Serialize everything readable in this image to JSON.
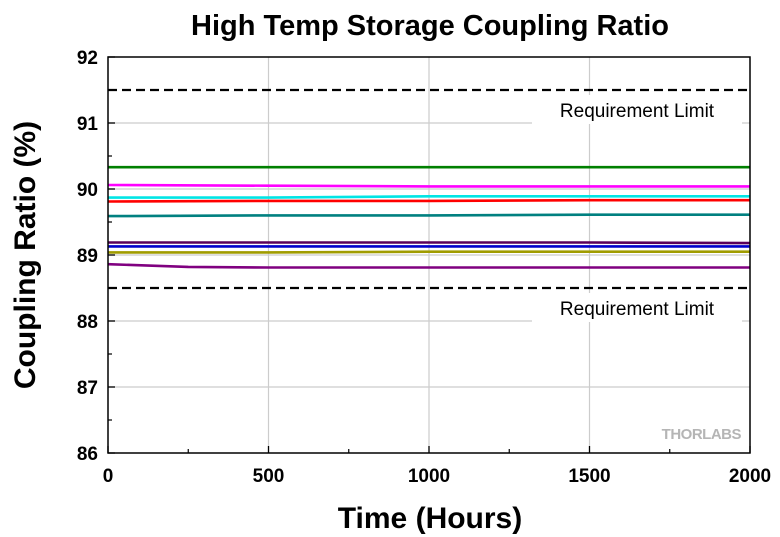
{
  "chart_data": {
    "type": "line",
    "title": "High Temp Storage Coupling Ratio",
    "xlabel": "Time (Hours)",
    "ylabel": "Coupling Ratio (%)",
    "xlim": [
      0,
      2000
    ],
    "ylim": [
      86,
      92
    ],
    "x_ticks": [
      "0",
      "500",
      "1000",
      "1500",
      "2000"
    ],
    "y_ticks": [
      "86",
      "87",
      "88",
      "89",
      "90",
      "91",
      "92"
    ],
    "grid": true,
    "reference_lines": [
      {
        "label": "Requirement Limit",
        "y": 91.5,
        "style": "dashed",
        "color": "#000000"
      },
      {
        "label": "Requirement Limit",
        "y": 88.5,
        "style": "dashed",
        "color": "#000000"
      }
    ],
    "series": [
      {
        "color": "#008000",
        "x": [
          0,
          500,
          1000,
          1500,
          2000
        ],
        "values": [
          90.33,
          90.33,
          90.33,
          90.33,
          90.33
        ]
      },
      {
        "color": "#ff00ff",
        "x": [
          0,
          500,
          1000,
          1500,
          2000
        ],
        "values": [
          90.06,
          90.05,
          90.04,
          90.04,
          90.04
        ]
      },
      {
        "color": "#00e5e5",
        "x": [
          0,
          500,
          1000,
          1500,
          2000
        ],
        "values": [
          89.87,
          89.87,
          89.89,
          89.89,
          89.89
        ]
      },
      {
        "color": "#ff0000",
        "x": [
          0,
          500,
          1000,
          1500,
          2000
        ],
        "values": [
          89.81,
          89.82,
          89.82,
          89.83,
          89.83
        ]
      },
      {
        "color": "#008080",
        "x": [
          0,
          500,
          1000,
          1500,
          2000
        ],
        "values": [
          89.59,
          89.6,
          89.6,
          89.61,
          89.61
        ]
      },
      {
        "color": "#5a005a",
        "x": [
          0,
          500,
          1000,
          1500,
          2000
        ],
        "values": [
          89.19,
          89.19,
          89.19,
          89.19,
          89.18
        ]
      },
      {
        "color": "#0000cc",
        "x": [
          0,
          500,
          1000,
          1500,
          2000
        ],
        "values": [
          89.13,
          89.13,
          89.13,
          89.13,
          89.13
        ]
      },
      {
        "color": "#a09c00",
        "x": [
          0,
          500,
          1000,
          1500,
          2000
        ],
        "values": [
          89.04,
          89.04,
          89.05,
          89.05,
          89.05
        ]
      },
      {
        "color": "#800080",
        "x": [
          0,
          250,
          500,
          1000,
          1500,
          2000
        ],
        "values": [
          88.86,
          88.82,
          88.81,
          88.81,
          88.81,
          88.81
        ]
      }
    ]
  },
  "logo_text": "THORLABS",
  "colors": {
    "grid": "#cccccc",
    "axis": "#000000",
    "background": "#ffffff"
  }
}
